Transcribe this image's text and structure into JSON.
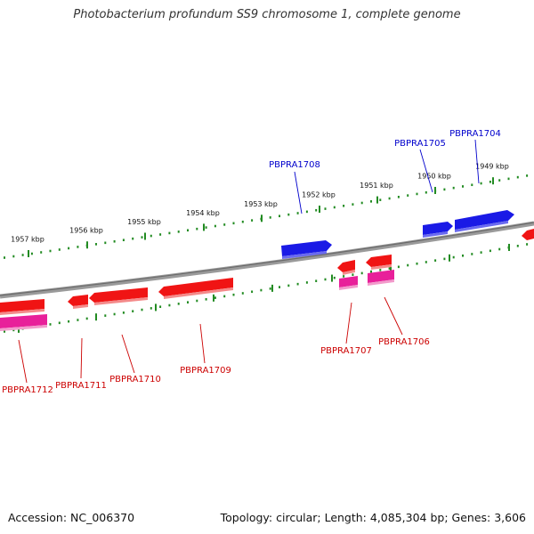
{
  "header": {
    "title": "Photobacterium profundum SS9 chromosome 1, complete genome"
  },
  "footer": {
    "accession": "Accession: NC_006370",
    "topology": "Topology: circular; Length: 4,085,304 bp; Genes: 3,606"
  },
  "colors": {
    "backbone": "#808080",
    "tick": "#228B22",
    "forward_gene": "#1a1ae6",
    "reverse_gene": "#f01414",
    "pseudo_gene": "#e8209a",
    "forward_label": "#0000cc",
    "reverse_label": "#cc0000"
  },
  "scale_labels": [
    "1957 kbp",
    "1956 kbp",
    "1955 kbp",
    "1954 kbp",
    "1953 kbp",
    "1952 kbp",
    "1951 kbp",
    "1950 kbp",
    "1949 kbp"
  ],
  "gene_labels_forward": [
    "PBPRA1708",
    "PBPRA1705",
    "PBPRA1704"
  ],
  "gene_labels_reverse": [
    "PBPRA1712",
    "PBPRA1711",
    "PBPRA1710",
    "PBPRA1709",
    "PBPRA1707",
    "PBPRA1706"
  ]
}
